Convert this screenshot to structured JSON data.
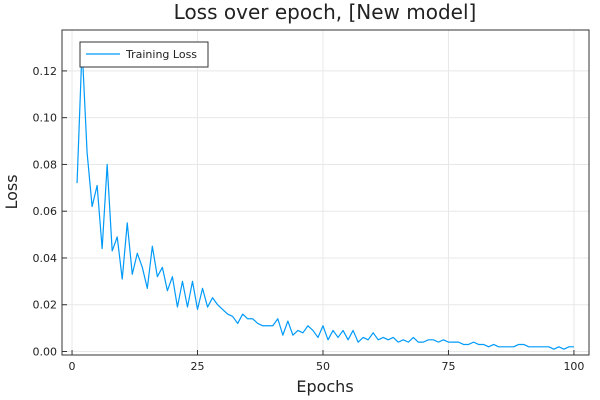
{
  "chart_data": {
    "type": "line",
    "title": "Loss over epoch, [New model]",
    "xlabel": "Epochs",
    "ylabel": "Loss",
    "xlim": [
      -2,
      103
    ],
    "ylim": [
      -0.0015,
      0.1375
    ],
    "xticks": [
      0,
      25,
      50,
      75,
      100
    ],
    "xtick_labels": [
      "0",
      "25",
      "50",
      "75",
      "100"
    ],
    "yticks": [
      0.0,
      0.02,
      0.04,
      0.06,
      0.08,
      0.1,
      0.12
    ],
    "ytick_labels": [
      "0.00",
      "0.02",
      "0.04",
      "0.06",
      "0.08",
      "0.10",
      "0.12"
    ],
    "grid": true,
    "legend_position": "top-left",
    "colors": {
      "series": "#009af9",
      "axis": "#333333",
      "grid": "#e8e8e8"
    },
    "series": [
      {
        "name": "Training Loss",
        "x": [
          1,
          2,
          3,
          4,
          5,
          6,
          7,
          8,
          9,
          10,
          11,
          12,
          13,
          14,
          15,
          16,
          17,
          18,
          19,
          20,
          21,
          22,
          23,
          24,
          25,
          26,
          27,
          28,
          29,
          30,
          31,
          32,
          33,
          34,
          35,
          36,
          37,
          38,
          39,
          40,
          41,
          42,
          43,
          44,
          45,
          46,
          47,
          48,
          49,
          50,
          51,
          52,
          53,
          54,
          55,
          56,
          57,
          58,
          59,
          60,
          61,
          62,
          63,
          64,
          65,
          66,
          67,
          68,
          69,
          70,
          71,
          72,
          73,
          74,
          75,
          76,
          77,
          78,
          79,
          80,
          81,
          82,
          83,
          84,
          85,
          86,
          87,
          88,
          89,
          90,
          91,
          92,
          93,
          94,
          95,
          96,
          97,
          98,
          99,
          100
        ],
        "values": [
          0.072,
          0.13,
          0.085,
          0.062,
          0.071,
          0.044,
          0.08,
          0.043,
          0.049,
          0.031,
          0.055,
          0.033,
          0.042,
          0.036,
          0.027,
          0.045,
          0.032,
          0.036,
          0.026,
          0.032,
          0.019,
          0.03,
          0.019,
          0.03,
          0.018,
          0.027,
          0.019,
          0.023,
          0.02,
          0.018,
          0.016,
          0.015,
          0.012,
          0.016,
          0.014,
          0.014,
          0.012,
          0.011,
          0.011,
          0.011,
          0.014,
          0.007,
          0.013,
          0.007,
          0.009,
          0.008,
          0.011,
          0.009,
          0.006,
          0.011,
          0.005,
          0.009,
          0.006,
          0.009,
          0.005,
          0.009,
          0.004,
          0.006,
          0.005,
          0.008,
          0.005,
          0.006,
          0.005,
          0.006,
          0.004,
          0.005,
          0.004,
          0.006,
          0.004,
          0.004,
          0.005,
          0.005,
          0.004,
          0.005,
          0.004,
          0.004,
          0.004,
          0.003,
          0.003,
          0.004,
          0.003,
          0.003,
          0.002,
          0.003,
          0.002,
          0.002,
          0.002,
          0.002,
          0.003,
          0.003,
          0.002,
          0.002,
          0.002,
          0.002,
          0.002,
          0.001,
          0.002,
          0.001,
          0.002,
          0.002
        ]
      }
    ]
  }
}
